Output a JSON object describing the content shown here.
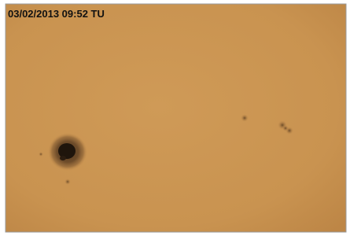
{
  "timestamp": "03/02/2013 09:52 TU"
}
